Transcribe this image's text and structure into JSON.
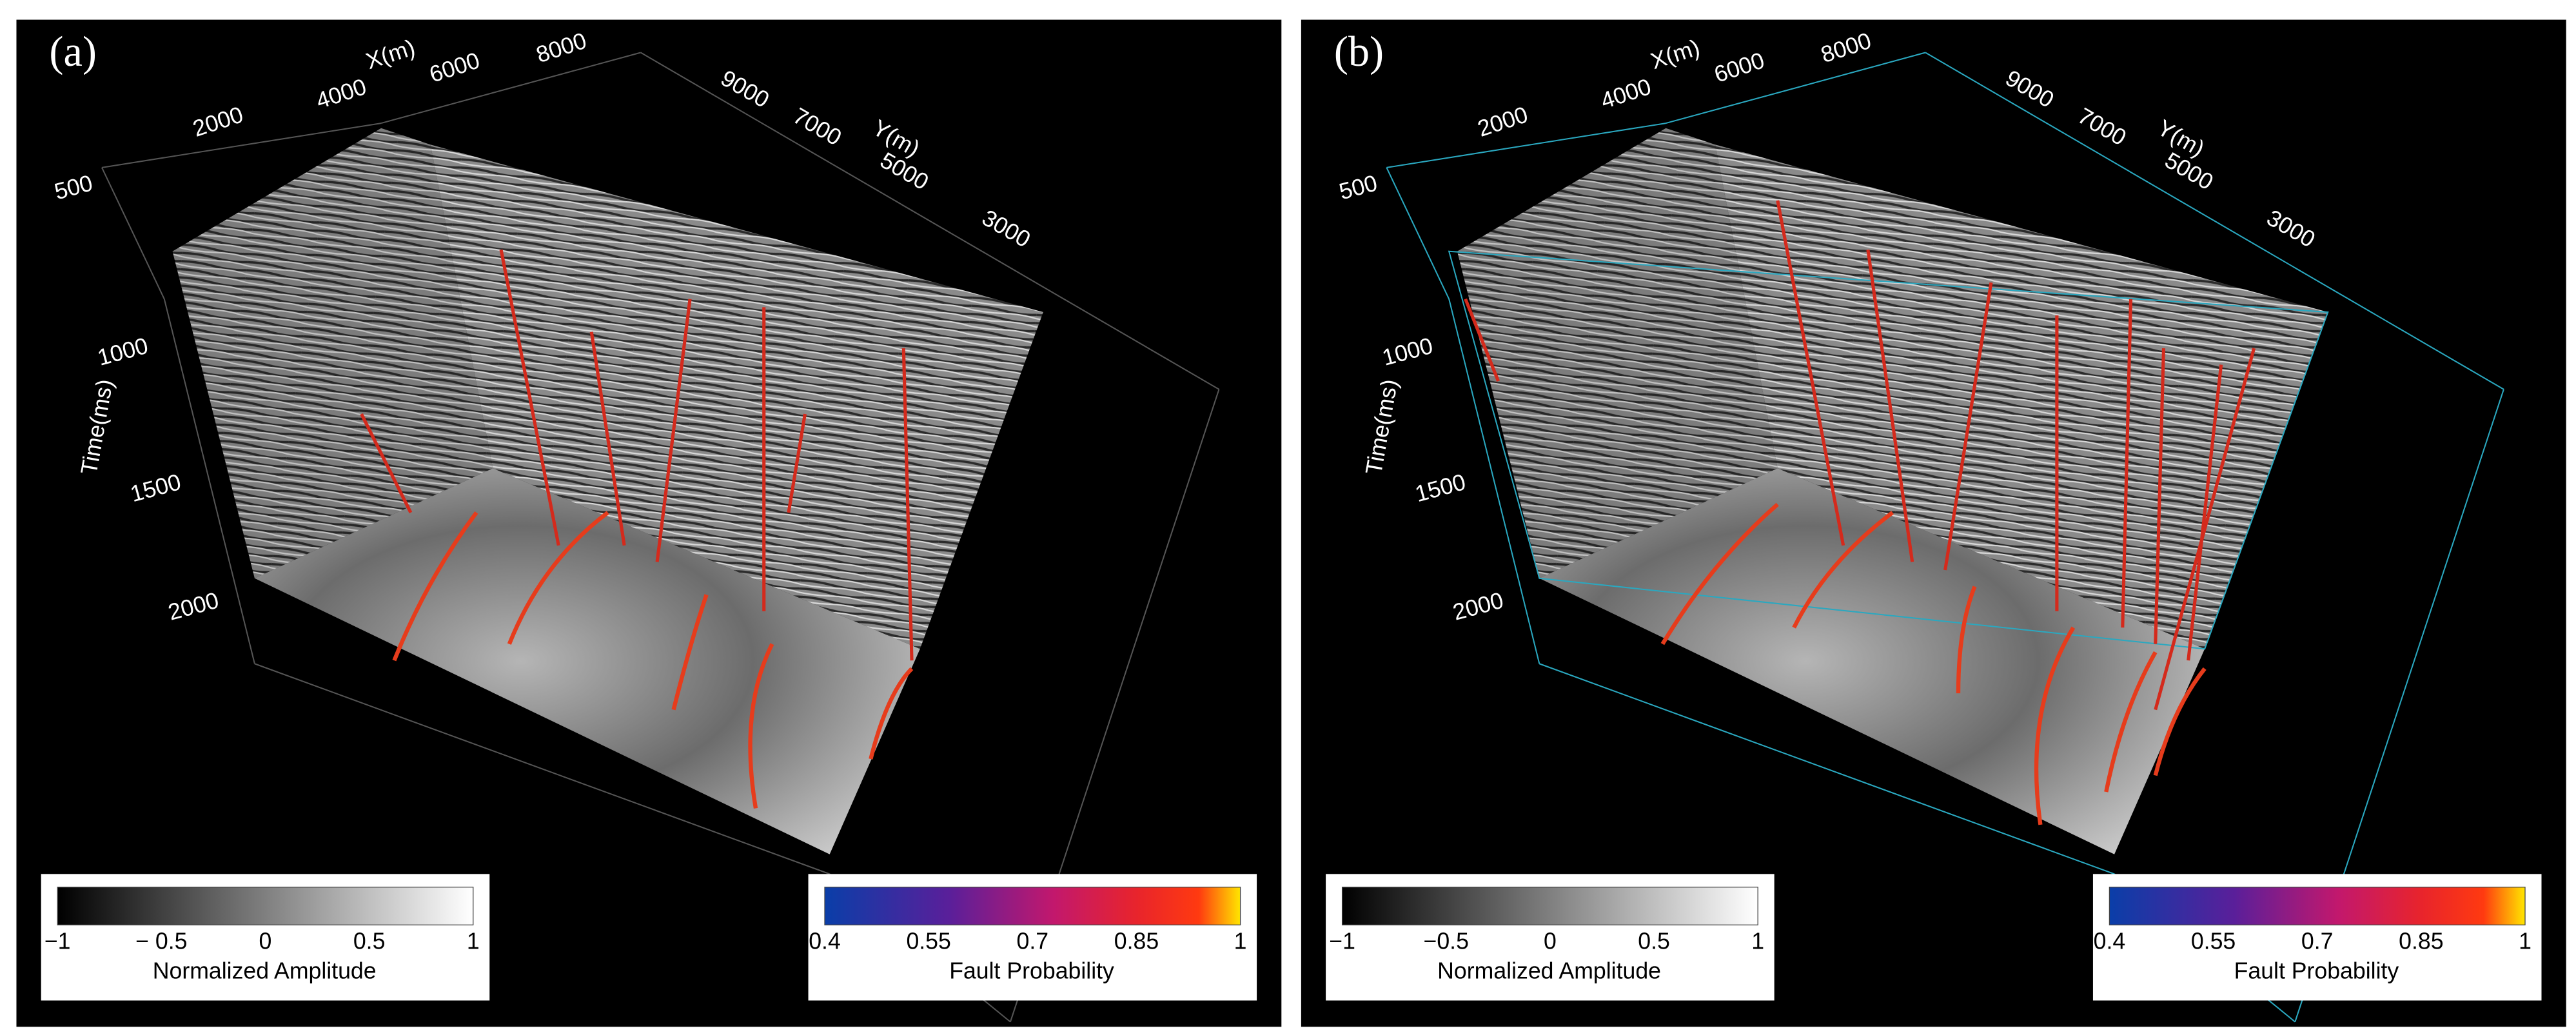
{
  "panels": [
    {
      "label": "(a)",
      "x_axis": {
        "label": "X(m)",
        "ticks": [
          "2000",
          "4000",
          "6000",
          "8000"
        ]
      },
      "y_axis": {
        "label": "Y(m)",
        "ticks": [
          "9000",
          "7000",
          "5000",
          "3000"
        ]
      },
      "time_axis": {
        "label": "Time(ms)",
        "ticks": [
          "500",
          "1000",
          "1500",
          "2000"
        ]
      },
      "colorbars": [
        {
          "label": "Normalized Amplitude",
          "ticks": [
            "−1",
            "− 0.5",
            "0",
            "0.5",
            "1"
          ]
        },
        {
          "label": "Fault Probability",
          "ticks": [
            "0.4",
            "0.55",
            "0.7",
            "0.85",
            "1"
          ]
        }
      ]
    },
    {
      "label": "(b)",
      "x_axis": {
        "label": "X(m)",
        "ticks": [
          "2000",
          "4000",
          "6000",
          "8000"
        ]
      },
      "y_axis": {
        "label": "Y(m)",
        "ticks": [
          "9000",
          "7000",
          "5000",
          "3000"
        ]
      },
      "time_axis": {
        "label": "Time(ms)",
        "ticks": [
          "500",
          "1000",
          "1500",
          "2000"
        ]
      },
      "colorbars": [
        {
          "label": "Normalized Amplitude",
          "ticks": [
            "−1",
            "−0.5",
            "0",
            "0.5",
            "1"
          ]
        },
        {
          "label": "Fault Probability",
          "ticks": [
            "0.4",
            "0.55",
            "0.7",
            "0.85",
            "1"
          ]
        }
      ]
    }
  ]
}
